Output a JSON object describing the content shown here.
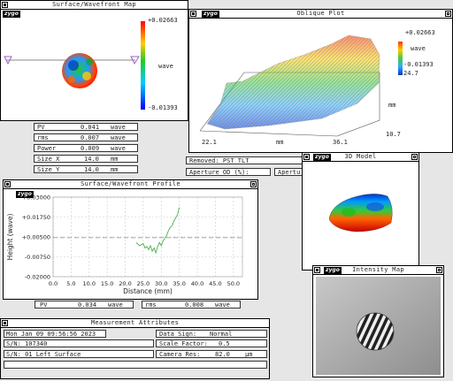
{
  "colors": {
    "desktop": "#e6e6e6",
    "window": "#ffffff",
    "grid": "#cccccc",
    "profile": "#4caf50",
    "accent_red": "#ff0000",
    "accent_blue": "#0000ff"
  },
  "logo_text": "zygo",
  "surface_map": {
    "title": "Surface/Wavefront Map",
    "scale_max": "+0.02663",
    "scale_min": "-0.01393",
    "scale_unit": "wave"
  },
  "oblique_plot": {
    "title": "Oblique Plot",
    "scale_max": "+0.02663",
    "scale_unit": "wave",
    "scale_min": "-0.01393",
    "z_value": "24.7",
    "axis_unit_y": "mm",
    "axis_unit_x": "mm",
    "y_tick": "10.7",
    "x_start": "22.1",
    "x_end": "36.1"
  },
  "stats": [
    {
      "label": "PV",
      "value": "0.041",
      "unit": "wave"
    },
    {
      "label": "rms",
      "value": "0.007",
      "unit": "wave"
    },
    {
      "label": "Power",
      "value": "0.009",
      "unit": "wave"
    },
    {
      "label": "Size X",
      "value": "14.0",
      "unit": "mm"
    },
    {
      "label": "Size Y",
      "value": "14.0",
      "unit": "mm"
    }
  ],
  "removed": "Removed: PST TLT",
  "aperture": "Aperture OD (%):",
  "aperture2": "Apertu",
  "model3d": {
    "title": "3D Model"
  },
  "intensity": {
    "title": "Intensity Map"
  },
  "profile": {
    "title": "Surface/Wavefront Profile",
    "ylabel": "Height (wave)",
    "xlabel": "Distance (mm)",
    "pv_label": "PV",
    "pv_value": "0.034",
    "pv_unit": "wave",
    "rms_label": "rms",
    "rms_value": "0.008",
    "rms_unit": "wave"
  },
  "chart_data": {
    "type": "line",
    "title": "",
    "xlabel": "Distance (mm)",
    "ylabel": "Height (wave)",
    "xlim": [
      0,
      52.5
    ],
    "ylim": [
      -0.02,
      0.03
    ],
    "x_ticks": [
      "0.0",
      "5.0",
      "10.0",
      "15.0",
      "20.0",
      "25.0",
      "30.0",
      "35.0",
      "40.0",
      "45.0",
      "50.0"
    ],
    "y_ticks": [
      "+0.03000",
      "+0.01750",
      "+0.00500",
      "-0.00750",
      "-0.02000"
    ],
    "reference_line_y": 0.0045,
    "series": [
      {
        "x": [
          23,
          24,
          25,
          25.5,
          26,
          26.5,
          27,
          27.5,
          28,
          28.5,
          29,
          29.5,
          30,
          30.5,
          31,
          31.5,
          32,
          32.5,
          33,
          33.5,
          34,
          34.5,
          35
        ],
        "y": [
          0.0015,
          -0.0005,
          0.0008,
          -0.002,
          -0.001,
          -0.003,
          -0.0005,
          -0.004,
          -0.002,
          -0.005,
          -0.001,
          0.0015,
          -0.0005,
          0.0025,
          0.004,
          0.006,
          0.009,
          0.011,
          0.012,
          0.015,
          0.017,
          0.019,
          0.0235
        ]
      }
    ]
  },
  "attributes": {
    "title": "Measurement Attributes",
    "datetime": "Mon Jan 09 09:56:56 2023",
    "data_sign": "Data Sign:",
    "data_sign_value": "Normal",
    "sn": "S/N: 107340",
    "scale_factor": "Scale Factor:",
    "scale_factor_value": "0.5",
    "sn2": "S/N: 01 Left Surface",
    "camera_res": "Camera Res:",
    "camera_res_value": "82.0",
    "camera_res_unit": "µm"
  }
}
